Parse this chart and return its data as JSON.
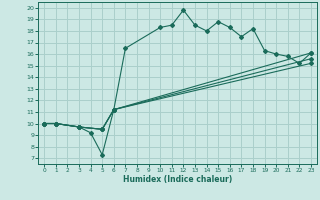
{
  "xlabel": "Humidex (Indice chaleur)",
  "xlim": [
    -0.5,
    23.5
  ],
  "ylim": [
    6.5,
    20.5
  ],
  "xticks": [
    0,
    1,
    2,
    3,
    4,
    5,
    6,
    7,
    8,
    9,
    10,
    11,
    12,
    13,
    14,
    15,
    16,
    17,
    18,
    19,
    20,
    21,
    22,
    23
  ],
  "yticks": [
    7,
    8,
    9,
    10,
    11,
    12,
    13,
    14,
    15,
    16,
    17,
    18,
    19,
    20
  ],
  "background_color": "#cce8e4",
  "grid_color": "#aacfcb",
  "line_color": "#1a6b5a",
  "curve1_x": [
    0,
    1,
    3,
    4,
    5,
    6,
    7,
    10,
    11,
    12,
    13,
    14,
    15,
    16,
    17,
    18,
    19,
    20,
    21,
    22,
    23
  ],
  "curve1_y": [
    10,
    10,
    9.7,
    9.2,
    7.3,
    11.2,
    16.5,
    18.3,
    18.5,
    19.8,
    18.5,
    18.0,
    18.8,
    18.3,
    17.5,
    18.2,
    16.3,
    16.0,
    15.8,
    15.2,
    16.1
  ],
  "curve2_x": [
    0,
    1,
    3,
    5,
    6,
    23
  ],
  "curve2_y": [
    10,
    10,
    9.7,
    9.5,
    11.2,
    16.1
  ],
  "curve3_x": [
    0,
    1,
    3,
    5,
    6,
    23
  ],
  "curve3_y": [
    10,
    10,
    9.7,
    9.5,
    11.2,
    15.6
  ],
  "curve4_x": [
    0,
    1,
    3,
    5,
    6,
    23
  ],
  "curve4_y": [
    10,
    10,
    9.7,
    9.5,
    11.2,
    15.2
  ]
}
